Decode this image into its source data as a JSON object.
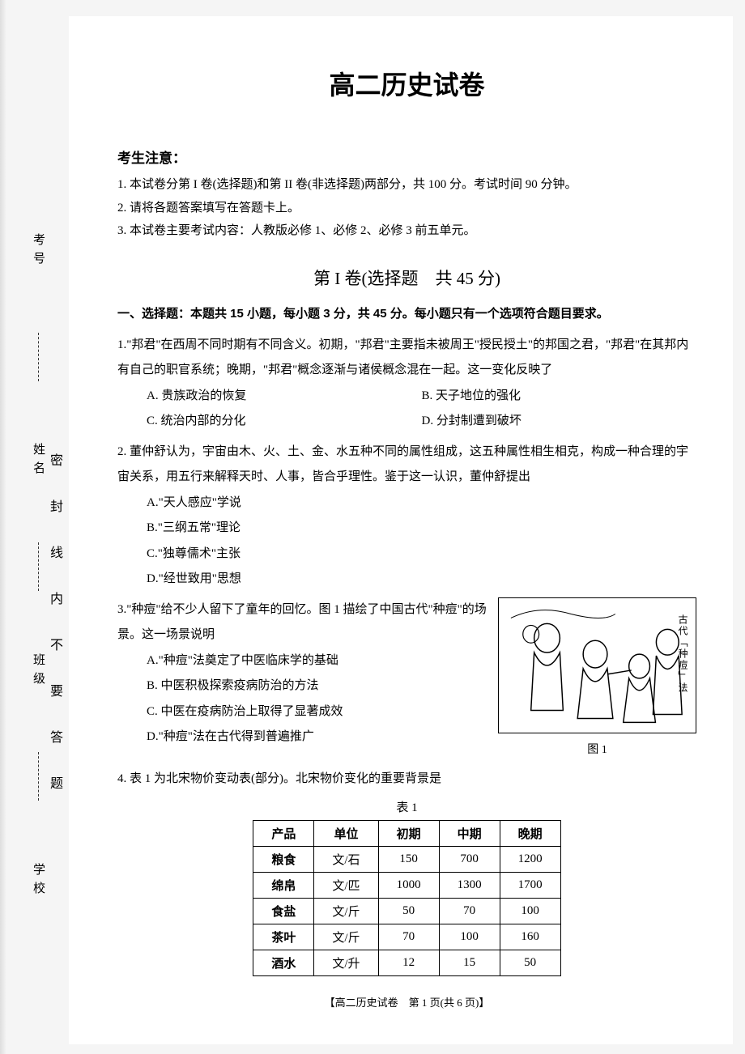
{
  "title": "高二历史试卷",
  "notice": {
    "head": "考生注意：",
    "items": [
      "1. 本试卷分第 I 卷(选择题)和第 II 卷(非选择题)两部分，共 100 分。考试时间 90 分钟。",
      "2. 请将各题答案填写在答题卡上。",
      "3. 本试卷主要考试内容：人教版必修 1、必修 2、必修 3 前五单元。"
    ]
  },
  "section1": {
    "head": "第 I 卷(选择题　共 45 分)",
    "stem": "一、选择题：本题共 15 小题，每小题 3 分，共 45 分。每小题只有一个选项符合题目要求。"
  },
  "q1": {
    "text": "1.\"邦君\"在西周不同时期有不同含义。初期，\"邦君\"主要指未被周王\"授民授土\"的邦国之君，\"邦君\"在其邦内有自己的职官系统；晚期，\"邦君\"概念逐渐与诸侯概念混在一起。这一变化反映了",
    "A": "A. 贵族政治的恢复",
    "B": "B. 天子地位的强化",
    "C": "C. 统治内部的分化",
    "D": "D. 分封制遭到破坏"
  },
  "q2": {
    "text": "2. 董仲舒认为，宇宙由木、火、土、金、水五种不同的属性组成，这五种属性相生相克，构成一种合理的宇宙关系，用五行来解释天时、人事，皆合乎理性。鉴于这一认识，董仲舒提出",
    "A": "A.\"天人感应\"学说",
    "B": "B.\"三纲五常\"理论",
    "C": "C.\"独尊儒术\"主张",
    "D": "D.\"经世致用\"思想"
  },
  "q3": {
    "text": "3.\"种痘\"给不少人留下了童年的回忆。图 1 描绘了中国古代\"种痘\"的场景。这一场景说明",
    "A": "A.\"种痘\"法奠定了中医临床学的基础",
    "B": "B. 中医积极探索疫病防治的方法",
    "C": "C. 中医在疫病防治上取得了显著成效",
    "D": "D.\"种痘\"法在古代得到普遍推广",
    "figure_side": "古代「种痘」法",
    "figure_caption": "图 1"
  },
  "q4": {
    "text": "4. 表 1 为北宋物价变动表(部分)。北宋物价变化的重要背景是",
    "table_caption": "表 1"
  },
  "table": {
    "columns": [
      "产品",
      "单位",
      "初期",
      "中期",
      "晚期"
    ],
    "rows": [
      [
        "粮食",
        "文/石",
        "150",
        "700",
        "1200"
      ],
      [
        "绵帛",
        "文/匹",
        "1000",
        "1300",
        "1700"
      ],
      [
        "食盐",
        "文/斤",
        "50",
        "70",
        "100"
      ],
      [
        "茶叶",
        "文/斤",
        "70",
        "100",
        "160"
      ],
      [
        "酒水",
        "文/升",
        "12",
        "15",
        "50"
      ]
    ]
  },
  "footer": "【高二历史试卷　第 1 页(共 6 页)】",
  "margin": {
    "labels": [
      "考号",
      "姓名",
      "班级",
      "学校"
    ],
    "seal": "密 封 线 内 不 要 答 题"
  }
}
